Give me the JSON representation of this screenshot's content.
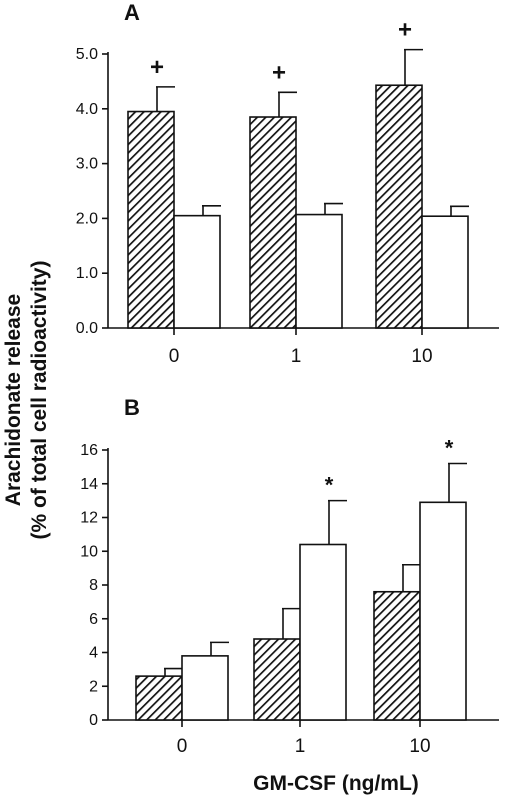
{
  "figure": {
    "ylabel_line1": "Arachidonate release",
    "ylabel_line2": "(% of total cell radioactivity)",
    "xlabel": "GM-CSF  (ng/mL)"
  },
  "chart_data": [
    {
      "type": "bar",
      "panel": "A",
      "categories": [
        "0",
        "1",
        "10"
      ],
      "ylim": [
        0,
        5.0
      ],
      "yticks": [
        0,
        1,
        2,
        3,
        4,
        5
      ],
      "ytick_labels": [
        "0.0",
        "1.0",
        "2.0",
        "3.0",
        "4.0",
        "5.0"
      ],
      "series": [
        {
          "style": "hatched",
          "values": [
            3.95,
            3.85,
            4.43
          ],
          "errors": [
            0.45,
            0.45,
            0.65
          ]
        },
        {
          "style": "open",
          "values": [
            2.05,
            2.07,
            2.04
          ],
          "errors": [
            0.18,
            0.2,
            0.18
          ]
        }
      ],
      "annotations": [
        {
          "text": "+",
          "category": 0,
          "series": 0
        },
        {
          "text": "+",
          "category": 1,
          "series": 0
        },
        {
          "text": "+",
          "category": 2,
          "series": 0
        }
      ],
      "colors": {
        "hatched": "#111111",
        "open": "#ffffff"
      }
    },
    {
      "type": "bar",
      "panel": "B",
      "categories": [
        "0",
        "1",
        "10"
      ],
      "ylim": [
        0,
        16
      ],
      "yticks": [
        0,
        2,
        4,
        6,
        8,
        10,
        12,
        14,
        16
      ],
      "ytick_labels": [
        "0",
        "2",
        "4",
        "6",
        "8",
        "10",
        "12",
        "14",
        "16"
      ],
      "series": [
        {
          "style": "hatched",
          "values": [
            2.6,
            4.8,
            7.6
          ],
          "errors": [
            0.45,
            1.8,
            1.6
          ]
        },
        {
          "style": "open",
          "values": [
            3.8,
            10.4,
            12.9
          ],
          "errors": [
            0.8,
            2.6,
            2.3
          ]
        }
      ],
      "annotations": [
        {
          "text": "*",
          "category": 1,
          "series": 1
        },
        {
          "text": "*",
          "category": 2,
          "series": 1
        }
      ],
      "colors": {
        "hatched": "#111111",
        "open": "#ffffff"
      }
    }
  ]
}
